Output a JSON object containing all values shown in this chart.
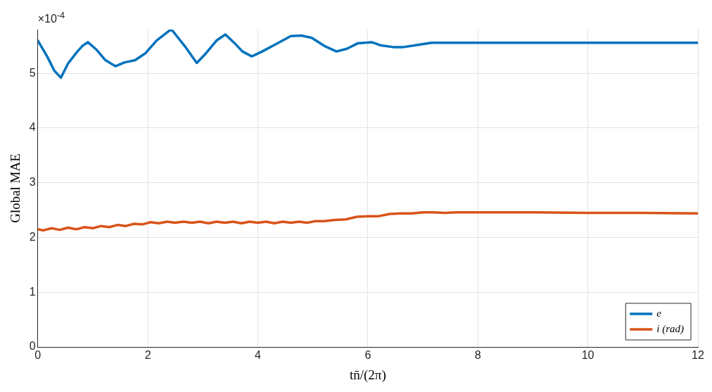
{
  "chart_data": {
    "type": "line",
    "xlabel": "tn̄/(2π)",
    "ylabel": "Global MAE",
    "annotations": [
      "×10$^{-4}$"
    ],
    "xlim": [
      0,
      12
    ],
    "xticks": [
      0,
      2,
      4,
      6,
      8,
      10,
      12
    ],
    "ylim": [
      0,
      5.8
    ],
    "yticks": [
      0,
      1,
      2,
      3,
      4,
      5
    ],
    "grid": true,
    "legend": "bottom right",
    "marker": "none",
    "line_style": "solid",
    "series": [
      {
        "name": "e",
        "color": "#0072bd",
        "x": [
          0,
          0.17,
          0.3,
          0.42,
          0.55,
          0.72,
          0.81,
          0.91,
          1.07,
          1.23,
          1.41,
          1.58,
          1.77,
          1.96,
          2.16,
          2.39,
          2.44,
          2.67,
          2.89,
          3.06,
          3.25,
          3.41,
          3.57,
          3.72,
          3.89,
          4.08,
          4.34,
          4.6,
          4.79,
          4.98,
          5.21,
          5.43,
          5.62,
          5.82,
          6.07,
          6.24,
          6.46,
          6.65,
          6.91,
          7.16,
          8.19,
          9.47,
          10.76,
          12
        ],
        "values": [
          5.6,
          5.31,
          5.05,
          4.92,
          5.18,
          5.4,
          5.5,
          5.57,
          5.43,
          5.24,
          5.13,
          5.2,
          5.24,
          5.37,
          5.6,
          5.78,
          5.79,
          5.5,
          5.19,
          5.37,
          5.6,
          5.71,
          5.56,
          5.4,
          5.31,
          5.4,
          5.54,
          5.68,
          5.69,
          5.65,
          5.5,
          5.4,
          5.45,
          5.55,
          5.57,
          5.51,
          5.48,
          5.48,
          5.52,
          5.56,
          5.56,
          5.56,
          5.56,
          5.56
        ]
      },
      {
        "name": "i (rad)",
        "color": "#d95319",
        "x": [
          0,
          0.1,
          0.25,
          0.4,
          0.55,
          0.7,
          0.85,
          1.0,
          1.15,
          1.3,
          1.45,
          1.6,
          1.75,
          1.9,
          2.05,
          2.2,
          2.35,
          2.5,
          2.65,
          2.8,
          2.95,
          3.1,
          3.25,
          3.4,
          3.55,
          3.7,
          3.85,
          4.0,
          4.15,
          4.3,
          4.45,
          4.6,
          4.75,
          4.9,
          5.05,
          5.2,
          5.4,
          5.6,
          5.8,
          6.0,
          6.2,
          6.4,
          6.6,
          6.8,
          7.0,
          7.2,
          7.4,
          7.6,
          8,
          9,
          10,
          11,
          12
        ],
        "values": [
          2.15,
          2.13,
          2.17,
          2.14,
          2.18,
          2.15,
          2.19,
          2.17,
          2.21,
          2.19,
          2.23,
          2.21,
          2.25,
          2.24,
          2.28,
          2.26,
          2.29,
          2.27,
          2.29,
          2.27,
          2.29,
          2.26,
          2.29,
          2.27,
          2.29,
          2.26,
          2.29,
          2.27,
          2.29,
          2.26,
          2.29,
          2.27,
          2.29,
          2.27,
          2.3,
          2.3,
          2.32,
          2.33,
          2.38,
          2.39,
          2.39,
          2.43,
          2.44,
          2.44,
          2.46,
          2.46,
          2.45,
          2.46,
          2.46,
          2.46,
          2.45,
          2.45,
          2.44
        ]
      }
    ]
  }
}
